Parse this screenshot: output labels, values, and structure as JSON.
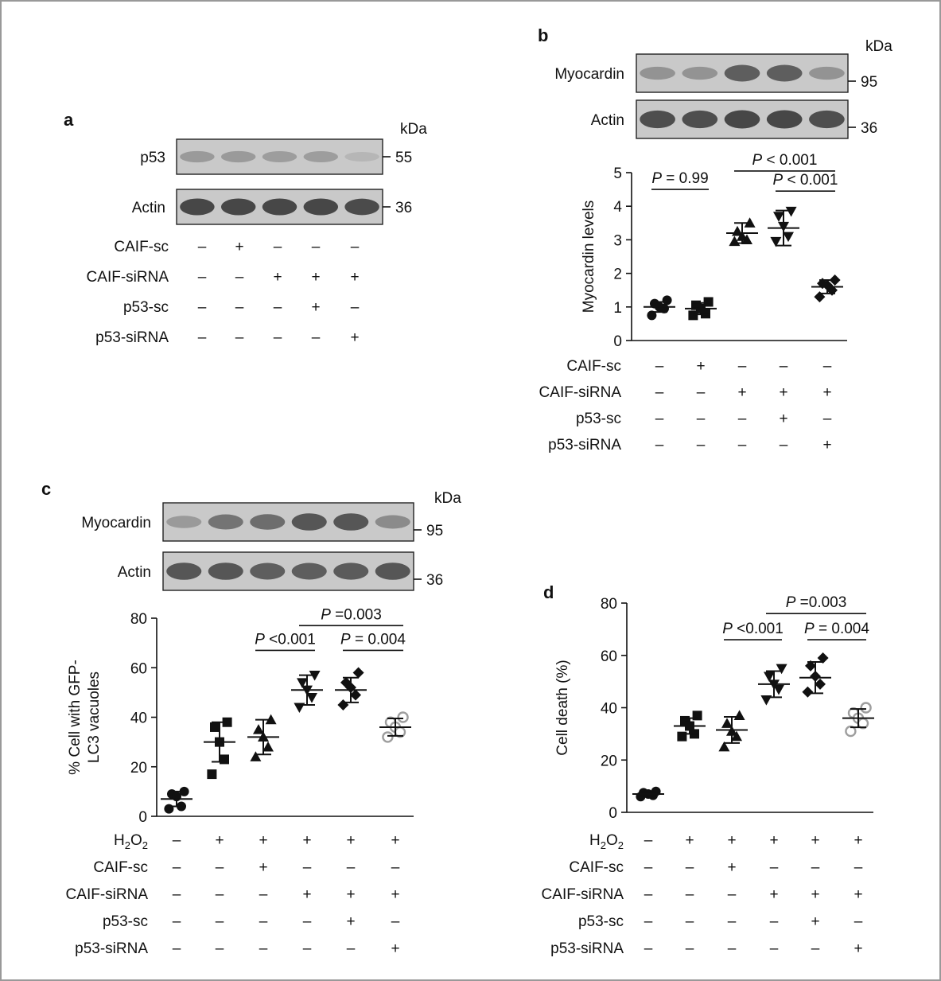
{
  "blot_a": {
    "letter": "a",
    "unit": "kDa",
    "bands": [
      {
        "label": "p53",
        "marker": "55",
        "intensity": [
          0.3,
          0.3,
          0.28,
          0.28,
          0.12
        ]
      },
      {
        "label": "Actin",
        "marker": "36",
        "intensity": [
          0.85,
          0.85,
          0.85,
          0.85,
          0.82
        ]
      }
    ],
    "conditions": [
      {
        "label": "CAIF-sc",
        "signs": [
          "–",
          "+",
          "–",
          "–",
          "–"
        ]
      },
      {
        "label": "CAIF-siRNA",
        "signs": [
          "–",
          "–",
          "+",
          "+",
          "+"
        ]
      },
      {
        "label": "p53-sc",
        "signs": [
          "–",
          "–",
          "–",
          "+",
          "–"
        ]
      },
      {
        "label": "p53-siRNA",
        "signs": [
          "–",
          "–",
          "–",
          "–",
          "+"
        ]
      }
    ]
  },
  "blot_b": {
    "letter": "b",
    "unit": "kDa",
    "bands": [
      {
        "label": "Myocardin",
        "marker": "95",
        "intensity": [
          0.35,
          0.35,
          0.7,
          0.7,
          0.35
        ]
      },
      {
        "label": "Actin",
        "marker": "36",
        "intensity": [
          0.8,
          0.8,
          0.85,
          0.85,
          0.8
        ]
      }
    ]
  },
  "blot_c": {
    "letter": "c",
    "unit": "kDa",
    "bands": [
      {
        "label": "Myocardin",
        "marker": "95",
        "intensity": [
          0.3,
          0.55,
          0.6,
          0.75,
          0.75,
          0.4
        ]
      },
      {
        "label": "Actin",
        "marker": "36",
        "intensity": [
          0.75,
          0.75,
          0.7,
          0.7,
          0.72,
          0.75
        ]
      }
    ]
  },
  "chart_data": [
    {
      "panel": "b",
      "type": "scatter",
      "title": "",
      "xlabel": "",
      "ylabel": "Myocardin levels",
      "ylim": [
        0,
        5
      ],
      "yticks": [
        0,
        1,
        2,
        3,
        4,
        5
      ],
      "groups": [
        {
          "marker": "circle",
          "color": "#111111",
          "points": [
            1.2,
            1.1,
            1.0,
            0.95,
            0.75
          ],
          "mean": 1.0,
          "sd": 0.15
        },
        {
          "marker": "square",
          "color": "#111111",
          "points": [
            1.15,
            1.05,
            0.95,
            0.8,
            0.75
          ],
          "mean": 0.95,
          "sd": 0.17
        },
        {
          "marker": "triangle-up",
          "color": "#111111",
          "points": [
            3.5,
            3.25,
            3.1,
            3.0,
            2.95
          ],
          "mean": 3.2,
          "sd": 0.3
        },
        {
          "marker": "triangle-down",
          "color": "#111111",
          "points": [
            3.85,
            3.7,
            3.4,
            3.1,
            2.95
          ],
          "mean": 3.35,
          "sd": 0.52
        },
        {
          "marker": "diamond",
          "color": "#111111",
          "points": [
            1.8,
            1.7,
            1.65,
            1.5,
            1.3
          ],
          "mean": 1.6,
          "sd": 0.2
        }
      ],
      "comparisons": [
        {
          "from": 0,
          "to": 1,
          "y": 4.5,
          "p_prefix": "P",
          "p_text": " = 0.99"
        },
        {
          "from": 2,
          "to": 4,
          "y": 5.05,
          "p_prefix": "P",
          "p_text": " < 0.001"
        },
        {
          "from": 3,
          "to": 4,
          "y": 4.45,
          "p_prefix": "P",
          "p_text": " < 0.001"
        }
      ],
      "conditions": [
        {
          "label": "CAIF-sc",
          "signs": [
            "–",
            "+",
            "–",
            "–",
            "–"
          ]
        },
        {
          "label": "CAIF-siRNA",
          "signs": [
            "–",
            "–",
            "+",
            "+",
            "+"
          ]
        },
        {
          "label": "p53-sc",
          "signs": [
            "–",
            "–",
            "–",
            "+",
            "–"
          ]
        },
        {
          "label": "p53-siRNA",
          "signs": [
            "–",
            "–",
            "–",
            "–",
            "+"
          ]
        }
      ]
    },
    {
      "panel": "c",
      "type": "scatter",
      "title": "",
      "xlabel": "",
      "ylabel_lines": [
        "% Cell with GFP-",
        "LC3 vacuoles"
      ],
      "ylim": [
        0,
        80
      ],
      "yticks": [
        0,
        20,
        40,
        60,
        80
      ],
      "groups": [
        {
          "marker": "circle",
          "color": "#111111",
          "points": [
            10,
            9,
            8,
            4,
            3
          ],
          "mean": 7,
          "sd": 3
        },
        {
          "marker": "square",
          "color": "#111111",
          "points": [
            38,
            36,
            30,
            23,
            17
          ],
          "mean": 30,
          "sd": 8
        },
        {
          "marker": "triangle-up",
          "color": "#111111",
          "points": [
            39,
            35,
            32,
            28,
            24
          ],
          "mean": 32,
          "sd": 7
        },
        {
          "marker": "triangle-down",
          "color": "#111111",
          "points": [
            57,
            54,
            51,
            48,
            44
          ],
          "mean": 51,
          "sd": 6
        },
        {
          "marker": "diamond",
          "color": "#111111",
          "points": [
            58,
            54,
            52,
            49,
            45
          ],
          "mean": 51,
          "sd": 5
        },
        {
          "marker": "open-circle",
          "color": "#9e9e9e",
          "points": [
            40,
            38,
            36,
            34,
            32
          ],
          "mean": 36,
          "sd": 3.5
        }
      ],
      "comparisons": [
        {
          "from": 2,
          "to": 3,
          "y": 67,
          "p_prefix": "P",
          "p_text": " <0.001"
        },
        {
          "from": 4,
          "to": 5,
          "y": 67,
          "p_prefix": "P",
          "p_text": " = 0.004"
        },
        {
          "from": 3,
          "to": 5,
          "y": 77,
          "p_prefix": "P",
          "p_text": " =0.003"
        }
      ],
      "conditions": [
        {
          "label": "H2O2",
          "signs": [
            "–",
            "+",
            "+",
            "+",
            "+",
            "+"
          ]
        },
        {
          "label": "CAIF-sc",
          "signs": [
            "–",
            "–",
            "+",
            "–",
            "–",
            "–"
          ]
        },
        {
          "label": "CAIF-siRNA",
          "signs": [
            "–",
            "–",
            "–",
            "+",
            "+",
            "+"
          ]
        },
        {
          "label": "p53-sc",
          "signs": [
            "–",
            "–",
            "–",
            "–",
            "+",
            "–"
          ]
        },
        {
          "label": "p53-siRNA",
          "signs": [
            "–",
            "–",
            "–",
            "–",
            "–",
            "+"
          ]
        }
      ]
    },
    {
      "panel": "d",
      "type": "scatter",
      "title": "",
      "xlabel": "",
      "ylabel": "Cell death (%)",
      "ylim": [
        0,
        80
      ],
      "yticks": [
        0,
        20,
        40,
        60,
        80
      ],
      "groups": [
        {
          "marker": "circle",
          "color": "#111111",
          "points": [
            8,
            7.5,
            7,
            6.5,
            6
          ],
          "mean": 7,
          "sd": 0.8
        },
        {
          "marker": "square",
          "color": "#111111",
          "points": [
            37,
            35,
            33,
            30,
            29
          ],
          "mean": 33,
          "sd": 3
        },
        {
          "marker": "triangle-up",
          "color": "#111111",
          "points": [
            37,
            34,
            31,
            29,
            25
          ],
          "mean": 31.5,
          "sd": 5
        },
        {
          "marker": "triangle-down",
          "color": "#111111",
          "points": [
            55,
            52,
            49,
            47,
            43
          ],
          "mean": 49,
          "sd": 5
        },
        {
          "marker": "diamond",
          "color": "#111111",
          "points": [
            59,
            56,
            52,
            49,
            46
          ],
          "mean": 51.5,
          "sd": 6
        },
        {
          "marker": "open-circle",
          "color": "#9e9e9e",
          "points": [
            40,
            38,
            36,
            34,
            31
          ],
          "mean": 36,
          "sd": 3.5
        }
      ],
      "comparisons": [
        {
          "from": 2,
          "to": 3,
          "y": 66,
          "p_prefix": "P",
          "p_text": " <0.001"
        },
        {
          "from": 4,
          "to": 5,
          "y": 66,
          "p_prefix": "P",
          "p_text": " = 0.004"
        },
        {
          "from": 3,
          "to": 5,
          "y": 76,
          "p_prefix": "P",
          "p_text": " =0.003"
        }
      ],
      "conditions": [
        {
          "label": "H2O2",
          "signs": [
            "–",
            "+",
            "+",
            "+",
            "+",
            "+"
          ]
        },
        {
          "label": "CAIF-sc",
          "signs": [
            "–",
            "–",
            "+",
            "–",
            "–",
            "–"
          ]
        },
        {
          "label": "CAIF-siRNA",
          "signs": [
            "–",
            "–",
            "–",
            "+",
            "+",
            "+"
          ]
        },
        {
          "label": "p53-sc",
          "signs": [
            "–",
            "–",
            "–",
            "–",
            "+",
            "–"
          ]
        },
        {
          "label": "p53-siRNA",
          "signs": [
            "–",
            "–",
            "–",
            "–",
            "–",
            "+"
          ]
        }
      ]
    }
  ],
  "colors": {
    "ink": "#111111",
    "border": "#999999",
    "open_marker": "#9e9e9e",
    "blot_background": "#c9c9c9"
  }
}
